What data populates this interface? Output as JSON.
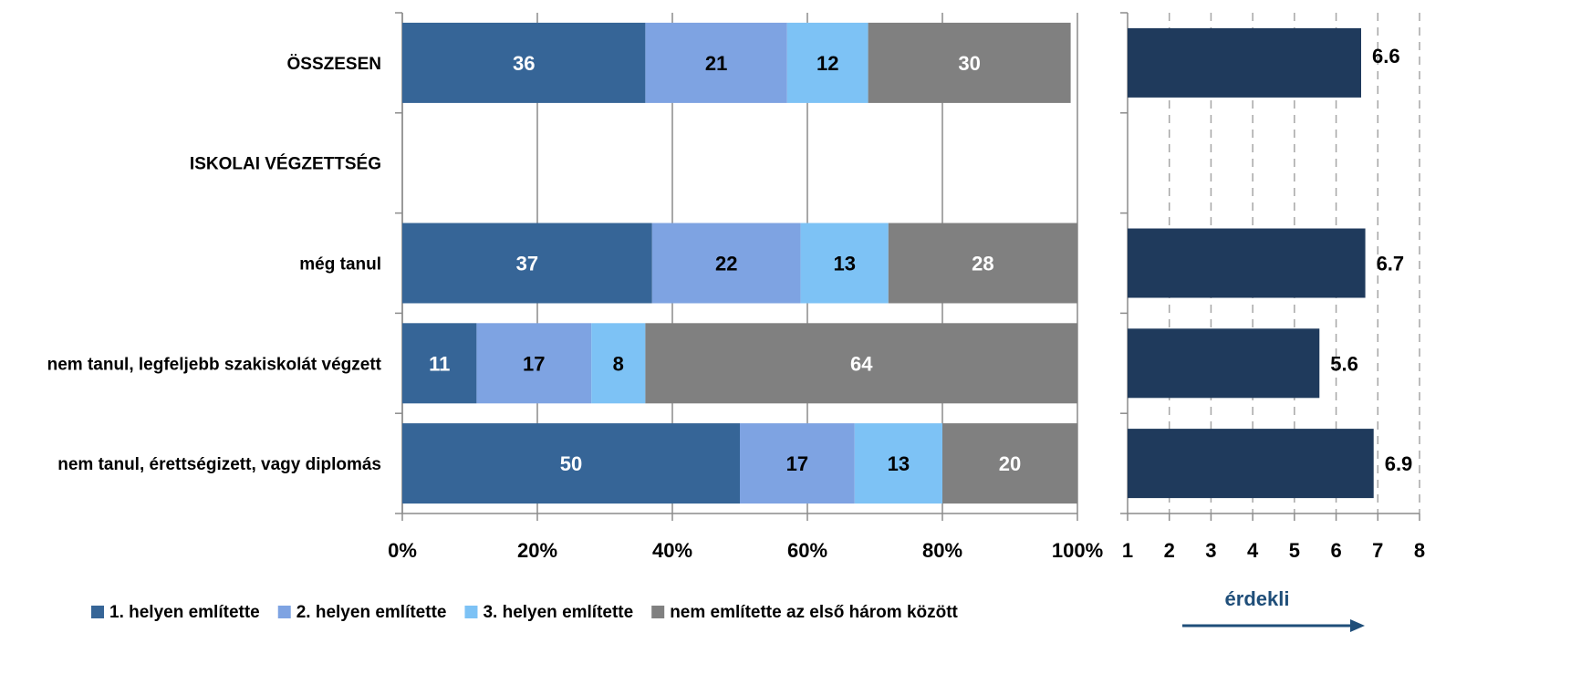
{
  "chart_data": [
    {
      "type": "bar",
      "orientation": "horizontal",
      "stacked": true,
      "categories": [
        "ÖSSZESEN",
        "ISKOLAI VÉGZETTSÉG",
        "még tanul",
        "nem tanul, legfeljebb szakiskolát végzett",
        "nem tanul, érettségizett, vagy diplomás"
      ],
      "series": [
        {
          "name": "1. helyen említette",
          "color": "#366597",
          "label_color": "#ffffff",
          "values": [
            36,
            null,
            37,
            11,
            50
          ]
        },
        {
          "name": "2. helyen említette",
          "color": "#7ea3e2",
          "label_color": "#000000",
          "values": [
            21,
            null,
            22,
            17,
            17
          ]
        },
        {
          "name": "3. helyen említette",
          "color": "#7dc2f5",
          "label_color": "#000000",
          "values": [
            12,
            null,
            13,
            8,
            13
          ]
        },
        {
          "name": "nem említette az első három között",
          "color": "#808080",
          "label_color": "#ffffff",
          "values": [
            30,
            null,
            28,
            64,
            20
          ]
        }
      ],
      "x_ticks": [
        "0%",
        "20%",
        "40%",
        "60%",
        "80%",
        "100%"
      ],
      "xlim": [
        0,
        100
      ],
      "grid": true,
      "legend_position": "bottom"
    },
    {
      "type": "bar",
      "orientation": "horizontal",
      "categories": [
        "ÖSSZESEN",
        "ISKOLAI VÉGZETTSÉG",
        "még tanul",
        "nem tanul, legfeljebb szakiskolát végzett",
        "nem tanul, érettségizett, vagy diplomás"
      ],
      "values": [
        6.6,
        null,
        6.7,
        5.6,
        6.9
      ],
      "value_labels": [
        "6.6",
        "",
        "6.7",
        "5.6",
        "6.9"
      ],
      "color": "#1f3a5c",
      "x_ticks": [
        "1",
        "2",
        "3",
        "4",
        "5",
        "6",
        "7",
        "8"
      ],
      "xlim": [
        1,
        8
      ],
      "grid": "dashed",
      "arrow_label": "érdekli",
      "arrow_color": "#1f4e79"
    }
  ]
}
